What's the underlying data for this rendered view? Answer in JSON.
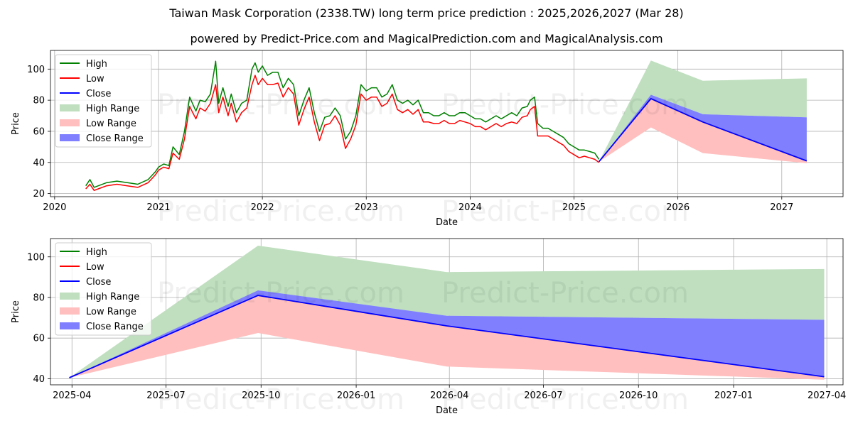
{
  "title": "Taiwan Mask Corporation (2338.TW) long term price prediction : 2025,2026,2027 (Mar 28)",
  "subtitle": "powered by Predict-Price.com and MagicalPrediction.com and MagicalAnalysis.com",
  "watermark": "Predict-Price.com",
  "colors": {
    "high": "#008000",
    "low": "#ff0000",
    "close": "#0000ff",
    "high_range": "#bfdfbf",
    "low_range": "#ffbfbf",
    "close_range": "#8080ff"
  },
  "chart_data": [
    {
      "type": "line",
      "xlabel": "Date",
      "ylabel": "Price",
      "xlim": [
        2019.96,
        2027.59
      ],
      "ylim": [
        18,
        112
      ],
      "yticks": [
        20,
        40,
        60,
        80,
        100
      ],
      "xticks": [
        {
          "x": 2020,
          "label": "2020"
        },
        {
          "x": 2021,
          "label": "2021"
        },
        {
          "x": 2022,
          "label": "2022"
        },
        {
          "x": 2023,
          "label": "2023"
        },
        {
          "x": 2024,
          "label": "2024"
        },
        {
          "x": 2025,
          "label": "2025"
        },
        {
          "x": 2026,
          "label": "2026"
        },
        {
          "x": 2027,
          "label": "2027"
        }
      ],
      "grid": true,
      "legend": {
        "position": "top-left",
        "entries": [
          "High",
          "Low",
          "Close",
          "High Range",
          "Low Range",
          "Close Range"
        ]
      },
      "history": {
        "x": [
          2020.3,
          2020.34,
          2020.38,
          2020.42,
          2020.5,
          2020.6,
          2020.7,
          2020.8,
          2020.9,
          2020.97,
          2021.0,
          2021.05,
          2021.1,
          2021.14,
          2021.2,
          2021.25,
          2021.3,
          2021.36,
          2021.4,
          2021.45,
          2021.5,
          2021.55,
          2021.58,
          2021.62,
          2021.67,
          2021.7,
          2021.75,
          2021.8,
          2021.85,
          2021.9,
          2021.93,
          2021.96,
          2022.0,
          2022.05,
          2022.1,
          2022.15,
          2022.2,
          2022.25,
          2022.3,
          2022.35,
          2022.4,
          2022.45,
          2022.5,
          2022.55,
          2022.6,
          2022.65,
          2022.7,
          2022.75,
          2022.8,
          2022.85,
          2022.9,
          2022.95,
          2023.0,
          2023.05,
          2023.1,
          2023.15,
          2023.2,
          2023.25,
          2023.3,
          2023.35,
          2023.4,
          2023.45,
          2023.5,
          2023.55,
          2023.6,
          2023.65,
          2023.7,
          2023.75,
          2023.8,
          2023.85,
          2023.9,
          2023.95,
          2024.0,
          2024.05,
          2024.1,
          2024.15,
          2024.2,
          2024.25,
          2024.3,
          2024.35,
          2024.4,
          2024.45,
          2024.5,
          2024.55,
          2024.58,
          2024.62,
          2024.65,
          2024.7,
          2024.75,
          2024.8,
          2024.85,
          2024.9,
          2024.95,
          2025.0,
          2025.05,
          2025.1,
          2025.15,
          2025.2,
          2025.24
        ],
        "high": [
          25,
          29,
          24,
          25,
          27,
          28,
          27,
          26,
          29,
          34,
          37,
          39,
          38,
          50,
          45,
          60,
          82,
          73,
          80,
          79,
          84,
          105,
          78,
          88,
          76,
          84,
          72,
          78,
          80,
          100,
          104,
          98,
          102,
          96,
          98,
          98,
          88,
          94,
          90,
          70,
          80,
          88,
          72,
          60,
          69,
          70,
          75,
          70,
          55,
          60,
          70,
          90,
          86,
          88,
          88,
          82,
          84,
          90,
          80,
          78,
          80,
          77,
          80,
          72,
          72,
          70,
          70,
          72,
          70,
          70,
          72,
          72,
          70,
          68,
          68,
          66,
          68,
          70,
          68,
          70,
          72,
          70,
          75,
          76,
          80,
          82,
          65,
          62,
          62,
          60,
          58,
          56,
          52,
          50,
          48,
          48,
          47,
          46,
          42
        ],
        "low": [
          23,
          26,
          22,
          23,
          25,
          26,
          25,
          24,
          27,
          32,
          35,
          37,
          36,
          46,
          42,
          55,
          76,
          68,
          75,
          73,
          78,
          90,
          72,
          82,
          70,
          78,
          66,
          72,
          75,
          90,
          96,
          90,
          94,
          90,
          90,
          91,
          82,
          88,
          84,
          64,
          74,
          82,
          66,
          54,
          64,
          65,
          70,
          64,
          49,
          55,
          64,
          84,
          80,
          82,
          82,
          76,
          78,
          84,
          74,
          72,
          74,
          71,
          74,
          66,
          66,
          65,
          65,
          67,
          65,
          65,
          67,
          66,
          65,
          63,
          63,
          61,
          63,
          65,
          63,
          65,
          66,
          65,
          69,
          70,
          74,
          76,
          57,
          57,
          57,
          55,
          53,
          51,
          47,
          45,
          43,
          44,
          43,
          42,
          40
        ]
      },
      "forecast": {
        "x": [
          2025.24,
          2025.74,
          2026.24,
          2027.24
        ],
        "close": [
          40.5,
          81,
          66,
          41
        ],
        "high_range": {
          "upper": [
            40.5,
            105.5,
            92.5,
            94
          ],
          "lower": [
            40.5,
            82,
            71,
            69
          ]
        },
        "low_range": {
          "upper": [
            40.5,
            81,
            66,
            41
          ],
          "lower": [
            40.5,
            62.5,
            46,
            39.5
          ]
        },
        "close_range": {
          "upper": [
            40.5,
            83.5,
            71,
            69
          ],
          "lower": [
            40.5,
            81,
            66,
            41
          ]
        }
      }
    },
    {
      "type": "area",
      "xlabel": "Date",
      "ylabel": "Price",
      "xlim": [
        2025.19,
        2027.29
      ],
      "ylim": [
        37,
        109
      ],
      "yticks": [
        40,
        60,
        80,
        100
      ],
      "xticks": [
        {
          "x": 2025.247,
          "label": "2025-04"
        },
        {
          "x": 2025.496,
          "label": "2025-07"
        },
        {
          "x": 2025.748,
          "label": "2025-10"
        },
        {
          "x": 2026.0,
          "label": "2026-01"
        },
        {
          "x": 2026.247,
          "label": "2026-04"
        },
        {
          "x": 2026.496,
          "label": "2026-07"
        },
        {
          "x": 2026.748,
          "label": "2026-10"
        },
        {
          "x": 2027.0,
          "label": "2027-01"
        },
        {
          "x": 2027.247,
          "label": "2027-04"
        }
      ],
      "grid": true,
      "legend": {
        "position": "top-left",
        "entries": [
          "High",
          "Low",
          "Close",
          "High Range",
          "Low Range",
          "Close Range"
        ]
      }
    }
  ]
}
